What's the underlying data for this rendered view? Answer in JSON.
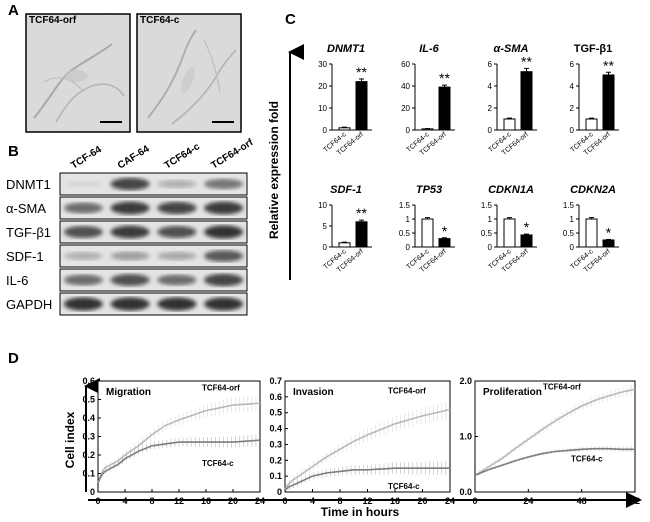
{
  "panel_labels": {
    "a": "A",
    "b": "B",
    "c": "C",
    "d": "D"
  },
  "panel_a": {
    "images": [
      {
        "label": "TCF64-orf"
      },
      {
        "label": "TCF64-c"
      }
    ]
  },
  "panel_b": {
    "lanes": [
      "TCF-64",
      "CAF-64",
      "TCF64-c",
      "TCF64-orf"
    ],
    "rows": [
      {
        "label": "DNMT1",
        "intensity": [
          0.05,
          0.8,
          0.25,
          0.55
        ]
      },
      {
        "label": "α-SMA",
        "intensity": [
          0.6,
          0.85,
          0.8,
          0.85
        ]
      },
      {
        "label": "TGF-β1",
        "intensity": [
          0.75,
          0.85,
          0.75,
          0.9
        ]
      },
      {
        "label": "SDF-1",
        "intensity": [
          0.25,
          0.35,
          0.3,
          0.7
        ]
      },
      {
        "label": "IL-6",
        "intensity": [
          0.6,
          0.75,
          0.6,
          0.8
        ]
      },
      {
        "label": "GAPDH",
        "intensity": [
          0.9,
          0.9,
          0.9,
          0.9
        ]
      }
    ]
  },
  "panel_c": {
    "ylabel": "Relative expression fold",
    "categories": [
      "TCF64-c",
      "TCF64-orf"
    ],
    "charts": [
      {
        "gene": "DNMT1",
        "italic": true,
        "ylim": [
          0,
          30
        ],
        "yticks": [
          0,
          10,
          20,
          30
        ],
        "values": [
          1,
          22
        ],
        "errors": [
          0.3,
          1.2
        ],
        "sig": "**"
      },
      {
        "gene": "IL-6",
        "italic": true,
        "ylim": [
          0,
          60
        ],
        "yticks": [
          0,
          20,
          40,
          60
        ],
        "values": [
          1,
          39
        ],
        "errors": [
          0.3,
          1.8
        ],
        "sig": "**"
      },
      {
        "gene": "α-SMA",
        "italic": true,
        "ylim": [
          0,
          6
        ],
        "yticks": [
          0,
          2,
          4,
          6
        ],
        "values": [
          1,
          5.3
        ],
        "errors": [
          0.08,
          0.3
        ],
        "sig": "**"
      },
      {
        "gene": "TGF-β1",
        "italic": false,
        "ylim": [
          0,
          6
        ],
        "yticks": [
          0,
          2,
          4,
          6
        ],
        "values": [
          1,
          5
        ],
        "errors": [
          0.08,
          0.25
        ],
        "sig": "**"
      },
      {
        "gene": "SDF-1",
        "italic": true,
        "ylim": [
          0,
          10
        ],
        "yticks": [
          0,
          5,
          10
        ],
        "values": [
          1,
          6
        ],
        "errors": [
          0.15,
          0.4
        ],
        "sig": "**"
      },
      {
        "gene": "TP53",
        "italic": true,
        "ylim": [
          0,
          1.5
        ],
        "yticks": [
          0,
          0.5,
          1,
          1.5
        ],
        "ytick_labels": [
          "0",
          "0.5",
          "1",
          "1.5"
        ],
        "values": [
          1,
          0.3
        ],
        "errors": [
          0.05,
          0.03
        ],
        "sig": "*"
      },
      {
        "gene": "CDKN1A",
        "italic": true,
        "ylim": [
          0,
          1.5
        ],
        "yticks": [
          0,
          0.5,
          1,
          1.5
        ],
        "ytick_labels": [
          "0",
          "0.5",
          "1",
          "1.5"
        ],
        "values": [
          1,
          0.43
        ],
        "errors": [
          0.05,
          0.03
        ],
        "sig": "*"
      },
      {
        "gene": "CDKN2A",
        "italic": true,
        "ylim": [
          0,
          1.5
        ],
        "yticks": [
          0,
          0.5,
          1,
          1.5
        ],
        "ytick_labels": [
          "0",
          "0.5",
          "1",
          "1.5"
        ],
        "values": [
          1,
          0.25
        ],
        "errors": [
          0.05,
          0.02
        ],
        "sig": "*"
      }
    ]
  },
  "chart_data": [
    {
      "type": "line",
      "title": "Migration",
      "ylabel": "Cell index",
      "xlabel": "Time in hours",
      "x": [
        0,
        0.5,
        1,
        2,
        3,
        4,
        6,
        8,
        10,
        12,
        16,
        20,
        24
      ],
      "xlim": [
        0,
        24
      ],
      "xticks": [
        0,
        4,
        8,
        12,
        16,
        20,
        24
      ],
      "ylim": [
        0,
        0.6
      ],
      "yticks": [
        0,
        0.1,
        0.2,
        0.3,
        0.4,
        0.5,
        0.6
      ],
      "series": [
        {
          "name": "TCF64-orf",
          "values": [
            0.05,
            0.1,
            0.13,
            0.15,
            0.17,
            0.2,
            0.25,
            0.31,
            0.36,
            0.39,
            0.44,
            0.47,
            0.48
          ]
        },
        {
          "name": "TCF64-c",
          "values": [
            0.05,
            0.09,
            0.11,
            0.13,
            0.15,
            0.18,
            0.22,
            0.25,
            0.26,
            0.27,
            0.27,
            0.27,
            0.28
          ]
        }
      ]
    },
    {
      "type": "line",
      "title": "Invasion",
      "x": [
        0,
        0.5,
        1,
        2,
        3,
        4,
        6,
        8,
        10,
        12,
        16,
        20,
        24
      ],
      "xlim": [
        0,
        24
      ],
      "xticks": [
        0,
        4,
        8,
        12,
        16,
        20,
        24
      ],
      "ylim": [
        0,
        0.7
      ],
      "yticks": [
        0,
        0.1,
        0.2,
        0.3,
        0.4,
        0.5,
        0.6,
        0.7
      ],
      "series": [
        {
          "name": "TCF64-orf",
          "values": [
            0.02,
            0.05,
            0.07,
            0.1,
            0.13,
            0.16,
            0.22,
            0.27,
            0.32,
            0.36,
            0.43,
            0.48,
            0.52
          ]
        },
        {
          "name": "TCF64-c",
          "values": [
            0.01,
            0.03,
            0.04,
            0.06,
            0.08,
            0.1,
            0.12,
            0.13,
            0.14,
            0.14,
            0.15,
            0.15,
            0.15
          ]
        }
      ]
    },
    {
      "type": "line",
      "title": "Proliferation",
      "x": [
        0,
        6,
        12,
        18,
        24,
        30,
        36,
        42,
        48,
        54,
        60,
        66,
        72
      ],
      "xlim": [
        0,
        72
      ],
      "xticks": [
        0,
        24,
        48,
        72
      ],
      "ylim": [
        0,
        2.0
      ],
      "yticks": [
        0,
        1.0,
        2.0
      ],
      "ytick_labels": [
        "0.0",
        "1.0",
        "2.0"
      ],
      "series": [
        {
          "name": "TCF64-orf",
          "values": [
            0.3,
            0.45,
            0.6,
            0.78,
            0.95,
            1.12,
            1.28,
            1.42,
            1.55,
            1.65,
            1.73,
            1.8,
            1.85
          ]
        },
        {
          "name": "TCF64-c",
          "values": [
            0.3,
            0.4,
            0.48,
            0.56,
            0.63,
            0.69,
            0.73,
            0.75,
            0.77,
            0.78,
            0.78,
            0.77,
            0.77
          ]
        }
      ]
    }
  ],
  "colors": {
    "orf_line": "#b8b8b8",
    "c_line": "#7d7d7d",
    "bar_filled": "#000000",
    "bar_open": "#ffffff"
  }
}
